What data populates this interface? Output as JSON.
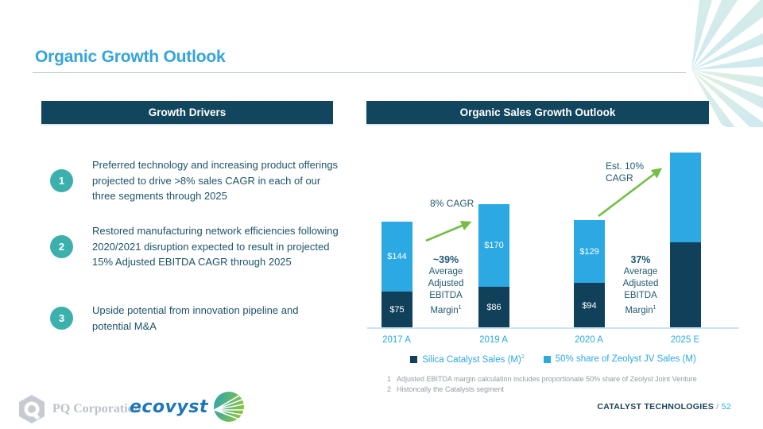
{
  "slide": {
    "title": "Organic Growth Outlook",
    "footer_section": "CATALYST TECHNOLOGIES",
    "footer_divider": "/",
    "page_number": "52",
    "logos": {
      "pq": "PQ Corporation",
      "ecovyst": "ecovyst"
    }
  },
  "growth_drivers": {
    "header": "Growth Drivers",
    "items": [
      {
        "number": "1",
        "text": "Preferred technology and increasing product offerings projected to drive >8% sales CAGR in each of our three segments through 2025"
      },
      {
        "number": "2",
        "text": "Restored manufacturing network efficiencies following 2020/2021 disruption expected to result in projected 15% Adjusted EBITDA CAGR through 2025"
      },
      {
        "number": "3",
        "text": "Upside potential from innovation pipeline and potential M&A"
      }
    ]
  },
  "sales_outlook": {
    "header": "Organic Sales Growth Outlook",
    "cagr_note_1": "8% CAGR",
    "cagr_note_2": "Est. 10% CAGR",
    "margin_note_1": {
      "pct": "~39%",
      "label": "Average Adjusted EBITDA Margin",
      "footnote_ref": "1"
    },
    "margin_note_2": {
      "pct": "37%",
      "label": "Average Adjusted EBITDA Margin",
      "footnote_ref": "1"
    }
  },
  "chart_data": {
    "type": "bar",
    "stacked": true,
    "title": "Organic Sales Growth Outlook",
    "categories": [
      "2017 A",
      "2019 A",
      "2020 A",
      "2025 E"
    ],
    "series": [
      {
        "name": "Silica Catalyst Sales (M)",
        "name_sup": "2",
        "color": "#11405A",
        "values": [
          75,
          86,
          94,
          177
        ],
        "value_labels": [
          "$75",
          "$86",
          "$94",
          ""
        ]
      },
      {
        "name": "50% share of Zeolyst JV Sales (M)",
        "name_sup": "",
        "color": "#2CA9E2",
        "values": [
          144,
          170,
          129,
          185
        ],
        "value_labels": [
          "$144",
          "$170",
          "$129",
          ""
        ]
      }
    ],
    "notes": "2025 E values are unlabeled estimates read from bar heights",
    "annotations": [
      "8% CAGR (2017 A to 2019 A)",
      "Est. 10% CAGR (2020 A to 2025 E)",
      "~39% Average Adjusted EBITDA Margin (2017-2019)",
      "37% Average Adjusted EBITDA Margin (2020-2025)"
    ],
    "legend_position": "bottom",
    "grid": false,
    "arrow_color": "#74BE44"
  },
  "footnotes": [
    {
      "num": "1",
      "text": "Adjusted EBITDA margin calculation includes proportionate 50% share of Zeolyst Joint Venture"
    },
    {
      "num": "2",
      "text": "Historically the Catalysts segment"
    }
  ]
}
